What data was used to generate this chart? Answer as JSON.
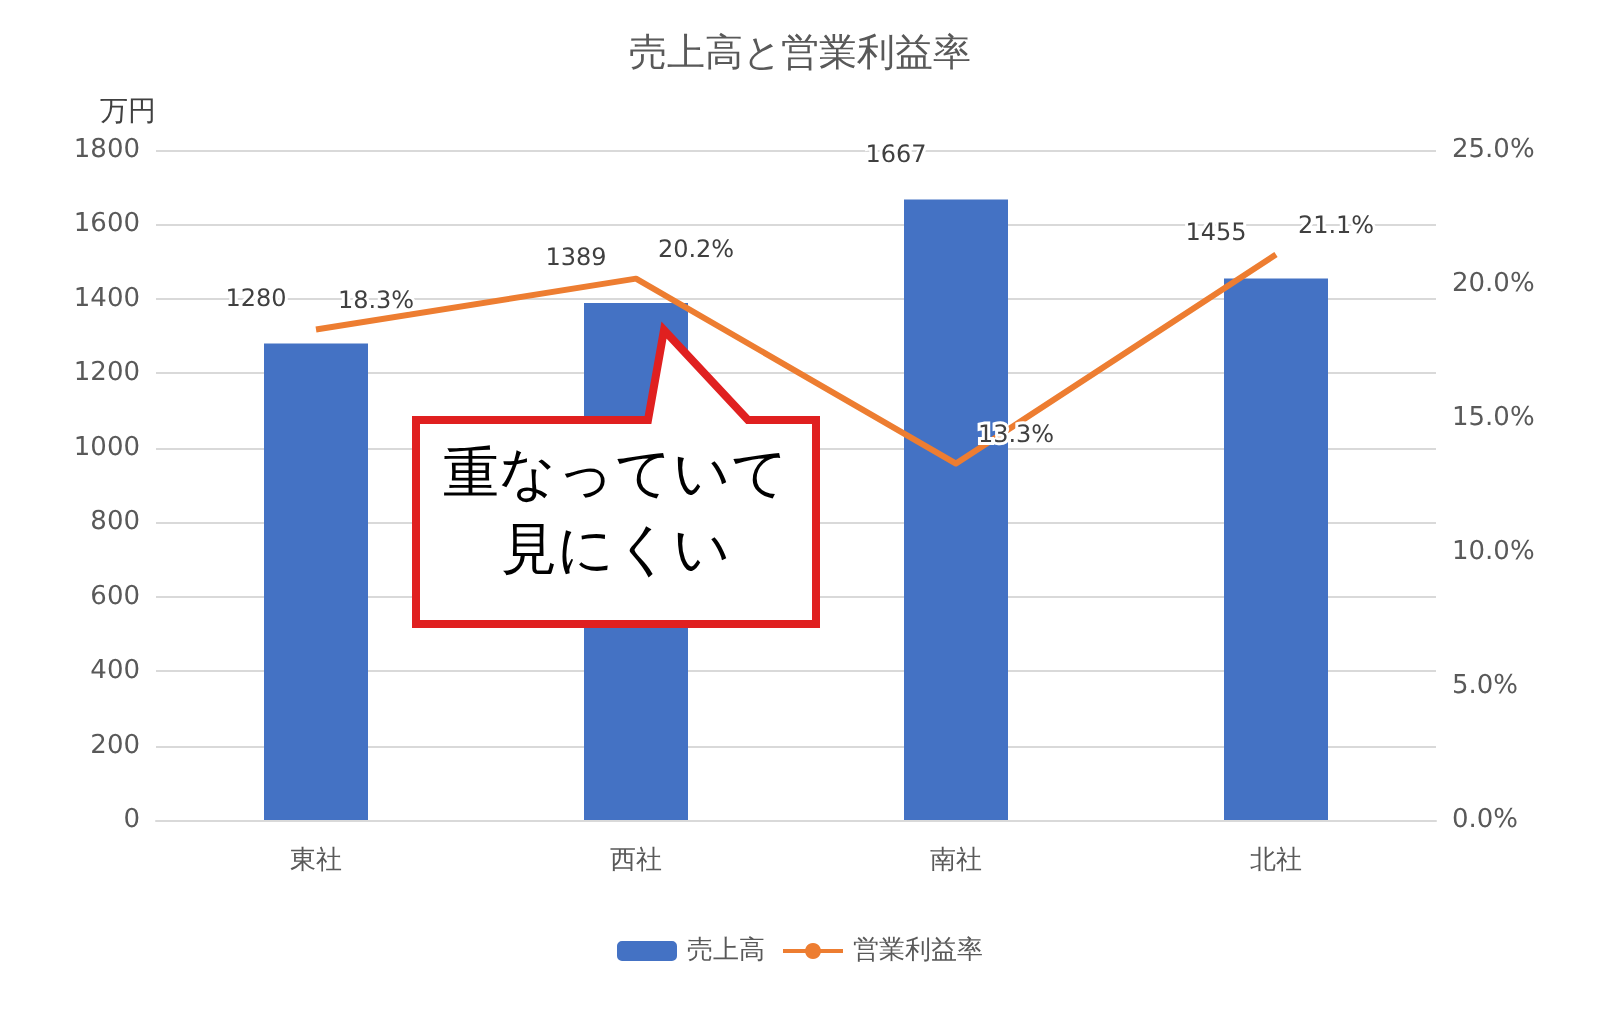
{
  "chart_data": {
    "type": "bar",
    "title": "売上高と営業利益率",
    "ylabel": "万円",
    "categories": [
      "東社",
      "西社",
      "南社",
      "北社"
    ],
    "series": [
      {
        "name": "売上高",
        "color": "#4472c4",
        "values": [
          1280,
          1389,
          1667,
          1455
        ]
      },
      {
        "name": "営業利益率",
        "type": "line",
        "axis": "y2",
        "color": "#ed7d31",
        "values": [
          18.3,
          20.2,
          13.3,
          21.1
        ],
        "value_labels": [
          "18.3%",
          "20.2%",
          "13.3%",
          "21.1%"
        ],
        "marker": "none"
      }
    ],
    "ylim": [
      0,
      1800
    ],
    "yticks": [
      0,
      200,
      400,
      600,
      800,
      1000,
      1200,
      1400,
      1600,
      1800
    ],
    "y2lim": [
      0,
      25
    ],
    "y2ticks": [
      {
        "value": 0,
        "label": "0.0%"
      },
      {
        "value": 5,
        "label": "5.0%"
      },
      {
        "value": 10,
        "label": "10.0%"
      },
      {
        "value": 15,
        "label": "15.0%"
      },
      {
        "value": 20,
        "label": "20.0%"
      },
      {
        "value": 25,
        "label": "25.0%"
      }
    ],
    "data_labels": true,
    "grid": "y",
    "legend": "bottom",
    "annotations": [
      "重なっていて見にくい"
    ]
  }
}
